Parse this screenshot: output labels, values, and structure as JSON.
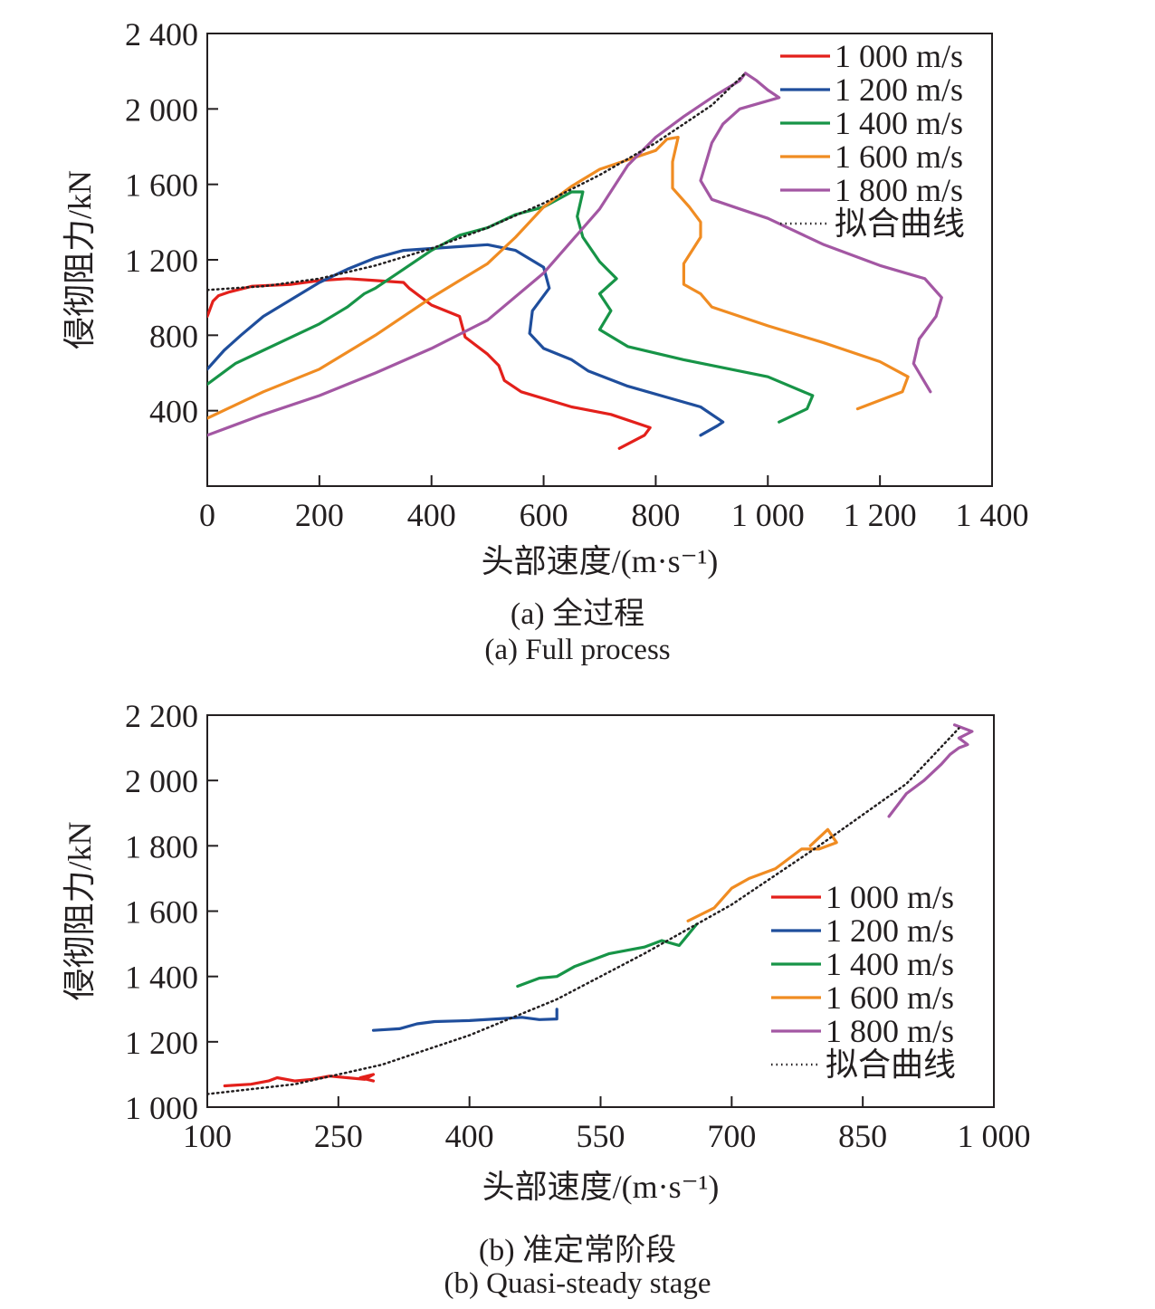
{
  "chart_data": [
    {
      "type": "line",
      "xlabel": "头部速度/(m·s⁻¹)",
      "ylabel": "侵彻阻力/kN",
      "xlim": [
        0,
        1400
      ],
      "ylim": [
        0,
        2400
      ],
      "xticks": [
        0,
        200,
        400,
        600,
        800,
        1000,
        1200,
        1400
      ],
      "xtick_labels": [
        "0",
        "200",
        "400",
        "600",
        "800",
        "1 000",
        "1 200",
        "1 400"
      ],
      "yticks": [
        400,
        800,
        1200,
        1600,
        2000,
        2400
      ],
      "ytick_labels": [
        "400",
        "800",
        "1 200",
        "1 600",
        "2 000",
        "2 400"
      ],
      "caption_zh": "(a) 全过程",
      "caption_en": "(a) Full process",
      "legend_position": "top-right",
      "series": [
        {
          "name": "1 000 m/s",
          "color": "#e3201b",
          "x": [
            0,
            10,
            20,
            40,
            80,
            150,
            200,
            250,
            300,
            350,
            360,
            400,
            450,
            460,
            500,
            520,
            530,
            560,
            650,
            720,
            790,
            780,
            735
          ],
          "y": [
            900,
            980,
            1010,
            1030,
            1060,
            1070,
            1090,
            1100,
            1090,
            1080,
            1050,
            960,
            900,
            790,
            700,
            640,
            560,
            500,
            420,
            380,
            310,
            270,
            200
          ]
        },
        {
          "name": "1 200 m/s",
          "color": "#1f4e9c",
          "x": [
            0,
            30,
            60,
            100,
            150,
            200,
            250,
            300,
            350,
            400,
            450,
            500,
            550,
            600,
            610,
            580,
            575,
            600,
            650,
            680,
            750,
            880,
            920,
            910,
            880
          ],
          "y": [
            620,
            720,
            800,
            900,
            990,
            1080,
            1150,
            1210,
            1250,
            1260,
            1270,
            1280,
            1250,
            1160,
            1050,
            930,
            810,
            730,
            670,
            610,
            530,
            420,
            340,
            320,
            270
          ]
        },
        {
          "name": "1 400 m/s",
          "color": "#179447",
          "x": [
            0,
            50,
            100,
            200,
            250,
            280,
            300,
            350,
            400,
            450,
            500,
            550,
            600,
            650,
            670,
            660,
            670,
            700,
            730,
            700,
            720,
            700,
            750,
            850,
            1000,
            1080,
            1070,
            1020
          ],
          "y": [
            540,
            650,
            720,
            860,
            950,
            1020,
            1050,
            1150,
            1250,
            1330,
            1370,
            1440,
            1480,
            1560,
            1560,
            1430,
            1320,
            1190,
            1100,
            1020,
            930,
            830,
            740,
            670,
            580,
            480,
            410,
            340
          ]
        },
        {
          "name": "1 600 m/s",
          "color": "#f08c22",
          "x": [
            0,
            100,
            200,
            300,
            400,
            450,
            500,
            550,
            600,
            650,
            700,
            750,
            800,
            820,
            840,
            830,
            830,
            860,
            880,
            880,
            850,
            850,
            880,
            900,
            1000,
            1100,
            1200,
            1250,
            1240,
            1160
          ],
          "y": [
            360,
            500,
            620,
            800,
            1000,
            1090,
            1180,
            1320,
            1480,
            1590,
            1680,
            1730,
            1780,
            1840,
            1850,
            1720,
            1580,
            1480,
            1400,
            1320,
            1180,
            1070,
            1020,
            950,
            850,
            760,
            660,
            580,
            500,
            410
          ]
        },
        {
          "name": "1 800 m/s",
          "color": "#a357a3",
          "x": [
            0,
            100,
            200,
            300,
            400,
            500,
            600,
            700,
            750,
            800,
            850,
            900,
            950,
            960,
            980,
            1000,
            1020,
            950,
            920,
            900,
            880,
            900,
            950,
            1000,
            1100,
            1200,
            1280,
            1310,
            1300,
            1270,
            1260,
            1290
          ],
          "y": [
            270,
            380,
            480,
            600,
            730,
            880,
            1130,
            1470,
            1700,
            1850,
            1960,
            2060,
            2150,
            2190,
            2150,
            2100,
            2060,
            2000,
            1920,
            1820,
            1620,
            1520,
            1470,
            1420,
            1280,
            1170,
            1100,
            1000,
            900,
            780,
            650,
            500
          ]
        },
        {
          "name": "拟合曲线",
          "color": "#231f20",
          "dotted": true,
          "x": [
            0,
            100,
            200,
            300,
            400,
            500,
            600,
            700,
            800,
            900,
            960
          ],
          "y": [
            1040,
            1060,
            1100,
            1170,
            1260,
            1370,
            1500,
            1650,
            1820,
            2020,
            2190
          ]
        }
      ]
    },
    {
      "type": "line",
      "xlabel": "头部速度/(m·s⁻¹)",
      "ylabel": "侵彻阻力/kN",
      "xlim": [
        100,
        1000
      ],
      "ylim": [
        1000,
        2200
      ],
      "xticks": [
        100,
        250,
        400,
        550,
        700,
        850,
        1000
      ],
      "xtick_labels": [
        "100",
        "250",
        "400",
        "550",
        "700",
        "850",
        "1 000"
      ],
      "yticks": [
        1000,
        1200,
        1400,
        1600,
        1800,
        2000,
        2200
      ],
      "ytick_labels": [
        "1 000",
        "1 200",
        "1 400",
        "1 600",
        "1 800",
        "2 000",
        "2 200"
      ],
      "caption_zh": "(b) 准定常阶段",
      "caption_en": "(b) Quasi-steady stage",
      "legend_position": "center-right",
      "series": [
        {
          "name": "1 000 m/s",
          "color": "#e3201b",
          "x": [
            120,
            150,
            170,
            180,
            200,
            220,
            240,
            260,
            280,
            290,
            275,
            290
          ],
          "y": [
            1065,
            1070,
            1080,
            1090,
            1080,
            1085,
            1095,
            1090,
            1085,
            1100,
            1090,
            1080
          ]
        },
        {
          "name": "1 200 m/s",
          "color": "#1f4e9c",
          "x": [
            290,
            320,
            340,
            360,
            400,
            430,
            460,
            480,
            500,
            500
          ],
          "y": [
            1235,
            1240,
            1255,
            1262,
            1265,
            1270,
            1275,
            1268,
            1270,
            1300
          ]
        },
        {
          "name": "1 400 m/s",
          "color": "#179447",
          "x": [
            455,
            480,
            500,
            520,
            540,
            560,
            600,
            620,
            640,
            660
          ],
          "y": [
            1370,
            1395,
            1400,
            1430,
            1450,
            1470,
            1490,
            1510,
            1495,
            1560
          ]
        },
        {
          "name": "1 600 m/s",
          "color": "#f08c22",
          "x": [
            650,
            680,
            700,
            720,
            750,
            780,
            800,
            820,
            810,
            790
          ],
          "y": [
            1570,
            1610,
            1670,
            1700,
            1730,
            1790,
            1790,
            1810,
            1850,
            1800
          ]
        },
        {
          "name": "1 800 m/s",
          "color": "#a357a3",
          "x": [
            880,
            900,
            920,
            940,
            950,
            960,
            970,
            960,
            975,
            955
          ],
          "y": [
            1890,
            1960,
            2000,
            2050,
            2080,
            2100,
            2110,
            2130,
            2150,
            2170
          ]
        },
        {
          "name": "拟合曲线",
          "color": "#231f20",
          "dotted": true,
          "x": [
            100,
            200,
            300,
            400,
            500,
            600,
            700,
            800,
            900,
            960
          ],
          "y": [
            1040,
            1070,
            1130,
            1220,
            1330,
            1470,
            1620,
            1800,
            1990,
            2160
          ]
        }
      ]
    }
  ]
}
